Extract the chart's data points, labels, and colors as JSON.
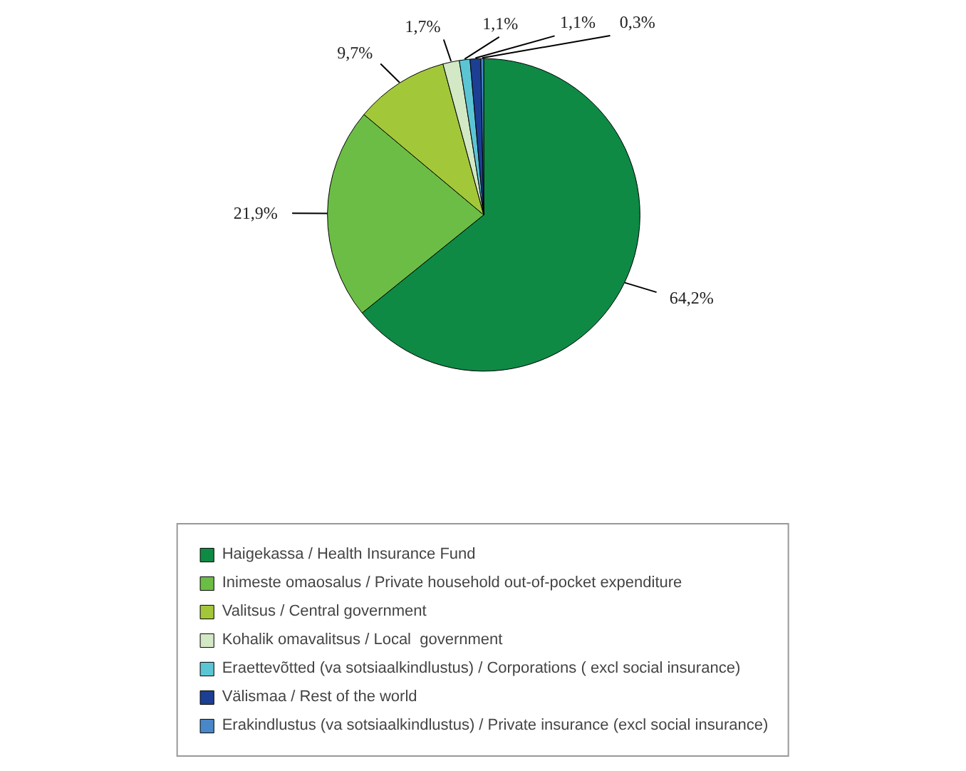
{
  "chart_data": {
    "type": "pie",
    "categories": [
      "Haigekassa / Health Insurance Fund",
      "Inimeste omaosalus / Private household out-of-pocket expenditure",
      "Valitsus / Central government",
      "Kohalik omavalitsus / Local  government",
      "Eraettevõtted (va sotsiaalkindlustus) / Corporations ( excl social insurance)",
      "Välismaa / Rest of the world",
      "Erakindlustus (va sotsiaalkindlustus) / Private insurance (excl social insurance)"
    ],
    "values": [
      64.2,
      21.9,
      9.7,
      1.7,
      1.1,
      1.1,
      0.3
    ],
    "value_labels": [
      "64,2%",
      "21,9%",
      "9,7%",
      "1,7%",
      "1,1%",
      "1,1%",
      "0,3%"
    ],
    "colors": [
      "#0e8a45",
      "#6cbd45",
      "#a2c83a",
      "#d3e8c4",
      "#5bc5d4",
      "#1c3f93",
      "#4a87c8"
    ],
    "legend": "bottom"
  }
}
